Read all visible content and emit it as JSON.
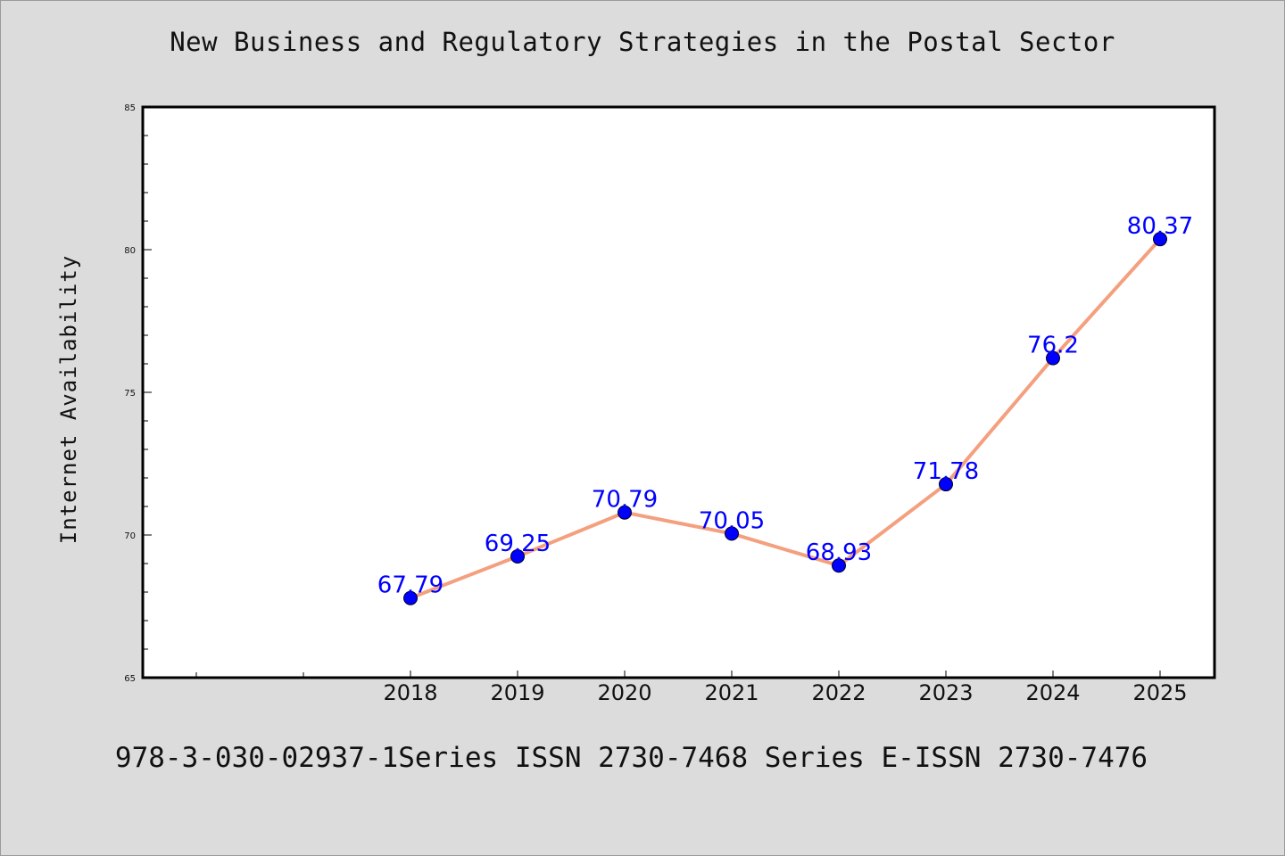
{
  "chart_data": {
    "type": "line",
    "title": "New Business and Regulatory Strategies in the Postal Sector",
    "ylabel": "Internet Availability",
    "xlabel": "",
    "footer": "978-3-030-02937-1Series ISSN 2730-7468 Series E-ISSN 2730-7476",
    "categories": [
      "2018",
      "2019",
      "2020",
      "2021",
      "2022",
      "2023",
      "2024",
      "2025"
    ],
    "series": [
      {
        "values": [
          67.79,
          69.25,
          70.79,
          70.05,
          68.93,
          71.78,
          76.2,
          80.37
        ],
        "data_labels": [
          "67.79",
          "69.25",
          "70.79",
          "70.05",
          "68.93",
          "71.78",
          "76.2",
          "80.37"
        ]
      }
    ],
    "ylim": [
      65,
      85
    ],
    "y_ticks": [
      "65",
      "70",
      "75",
      "80",
      "85"
    ],
    "line_color": "#f4a07f",
    "marker_color": "#0000ff",
    "label_color": "#0000ff",
    "plot_background": "#ffffff",
    "page_background": "#dcdcdc",
    "grid": false,
    "legend": "none"
  }
}
